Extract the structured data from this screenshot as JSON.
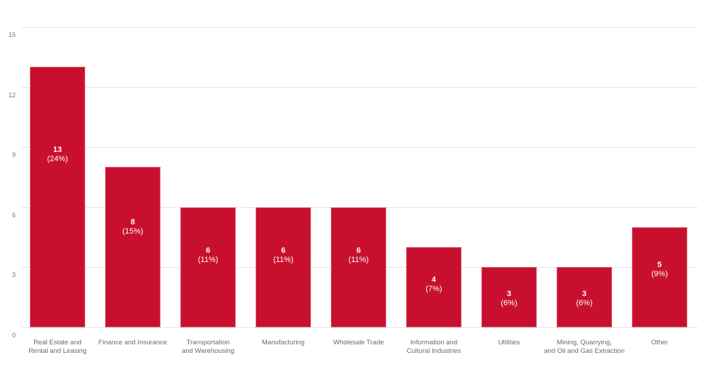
{
  "chart_data": {
    "type": "bar",
    "title": "",
    "xlabel": "",
    "ylabel": "",
    "categories": [
      [
        "Real Estate and",
        "Rental and Leasing"
      ],
      [
        "Finance and Insurance"
      ],
      [
        "Transportation",
        "and Warehousing"
      ],
      [
        "Manufacturing"
      ],
      [
        "Wholesale Trade"
      ],
      [
        "Information and",
        "Cultural Industries"
      ],
      [
        "Utilities"
      ],
      [
        "Mining, Quarrying,",
        "and Oil and Gas Extraction"
      ],
      [
        "Other"
      ]
    ],
    "values": [
      13,
      8,
      6,
      6,
      6,
      4,
      3,
      3,
      5
    ],
    "value_labels": [
      "13",
      "8",
      "6",
      "6",
      "6",
      "4",
      "3",
      "3",
      "5"
    ],
    "percent_labels": [
      "(24%)",
      "(15%)",
      "(11%)",
      "(11%)",
      "(11%)",
      "(7%)",
      "(6%)",
      "(6%)",
      "(9%)"
    ],
    "ylim": [
      0,
      15
    ],
    "yticks": [
      "0",
      "3",
      "6",
      "9",
      "12",
      "15"
    ],
    "grid": true,
    "legend": false,
    "colors": {
      "bar": "#c8102e",
      "gridline": "#e4e4e4",
      "tick_text": "#757575",
      "category_text": "#6b6b6b",
      "value_text": "#ffffff",
      "background": "#ffffff"
    }
  }
}
